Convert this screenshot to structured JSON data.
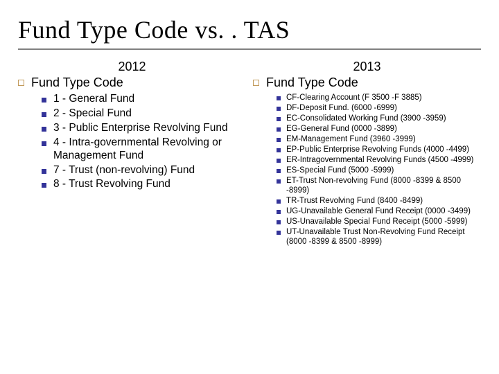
{
  "title": "Fund Type Code vs. . TAS",
  "accent_color": "#c29a5b",
  "bullet_color": "#333399",
  "underline_color": "#808080",
  "background_color": "#ffffff",
  "title_font": "Times New Roman",
  "body_font": "Verdana",
  "title_fontsize": 36,
  "year_fontsize": 18,
  "section_fontsize": 18,
  "left_item_fontsize": 15.5,
  "right_item_fontsize": 11.5,
  "left": {
    "year": "2012",
    "section": "Fund Type Code",
    "items": [
      "1 - General Fund",
      "2 - Special Fund",
      "3 - Public Enterprise Revolving Fund",
      "4 - Intra-governmental Revolving or Management Fund",
      "7 - Trust (non-revolving) Fund",
      "8 - Trust Revolving Fund"
    ]
  },
  "right": {
    "year": "2013",
    "section": "Fund Type Code",
    "items": [
      "CF-Clearing Account (F 3500 -F 3885)",
      "DF-Deposit Fund. (6000 -6999)",
      "EC-Consolidated Working Fund (3900 -3959)",
      "EG-General Fund (0000 -3899)",
      "EM-Management Fund (3960 -3999)",
      "EP-Public Enterprise Revolving Funds (4000 -4499)",
      "ER-Intragovernmental Revolving Funds (4500 -4999)",
      "ES-Special Fund (5000 -5999)",
      "ET-Trust Non-revolving Fund (8000 -8399 & 8500 -8999)",
      "TR-Trust Revolving Fund (8400 -8499)",
      "UG-Unavailable General Fund Receipt (0000 -3499)",
      "US-Unavailable Special Fund Receipt (5000 -5999)",
      "UT-Unavailable Trust Non-Revolving Fund Receipt (8000 -8399 & 8500 -8999)"
    ]
  }
}
